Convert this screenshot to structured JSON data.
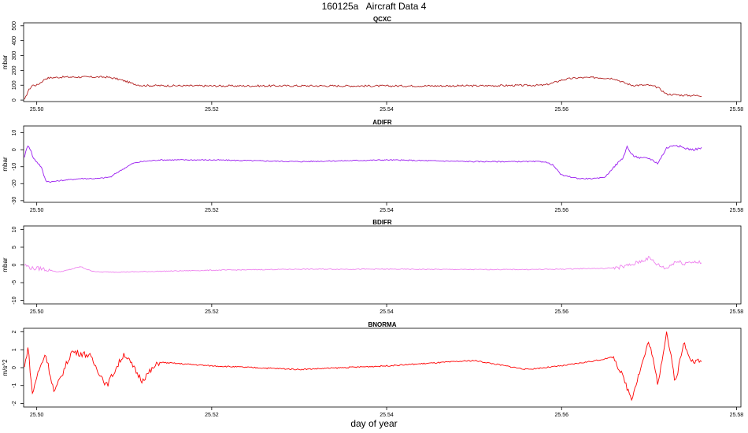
{
  "title": "160125a   Aircraft Data 4",
  "xlabel": "day of year",
  "chart_data": [
    {
      "type": "line",
      "title": "QCXC",
      "ylabel": "mbar",
      "color": "#b22222",
      "xlim": [
        25.4985,
        25.5805
      ],
      "ylim": [
        -10,
        520
      ],
      "xticks": [
        25.5,
        25.52,
        25.54,
        25.56,
        25.58
      ],
      "xtick_labels": [
        "25.50",
        "25.52",
        "25.54",
        "25.56",
        "25.58"
      ],
      "yticks": [
        0,
        100,
        200,
        300,
        400,
        500
      ],
      "ytick_labels": [
        "0",
        "100",
        "200",
        "300",
        "400",
        "500"
      ],
      "series": [
        {
          "x": [
            25.4986,
            25.499,
            25.4995,
            25.5,
            25.5005,
            25.501,
            25.5015,
            25.503,
            25.506,
            25.508,
            25.509,
            25.51,
            25.511,
            25.512,
            25.52,
            25.53,
            25.54,
            25.55,
            25.558,
            25.559,
            25.56,
            25.561,
            25.562,
            25.564,
            25.566,
            25.567,
            25.568,
            25.569,
            25.57,
            25.571,
            25.572,
            25.574,
            25.576
          ],
          "y": [
            0,
            60,
            100,
            100,
            120,
            145,
            150,
            155,
            155,
            155,
            145,
            130,
            110,
            98,
            95,
            96,
            95,
            96,
            100,
            115,
            135,
            145,
            150,
            152,
            145,
            120,
            100,
            100,
            100,
            85,
            40,
            32,
            30
          ]
        }
      ]
    },
    {
      "type": "line",
      "title": "ADIFR",
      "ylabel": "mbar",
      "color": "#9a1cf0",
      "xlim": [
        25.4985,
        25.5805
      ],
      "ylim": [
        -31,
        14
      ],
      "xticks": [
        25.5,
        25.52,
        25.54,
        25.56,
        25.58
      ],
      "xtick_labels": [
        "25.50",
        "25.52",
        "25.54",
        "25.56",
        "25.58"
      ],
      "yticks": [
        -30,
        -20,
        -10,
        0,
        10
      ],
      "ytick_labels": [
        "-30",
        "-20",
        "-10",
        "0",
        "10"
      ],
      "series": [
        {
          "x": [
            25.4986,
            25.499,
            25.4993,
            25.4996,
            25.5,
            25.5005,
            25.501,
            25.5015,
            25.503,
            25.505,
            25.507,
            25.5085,
            25.509,
            25.51,
            25.511,
            25.512,
            25.514,
            25.52,
            25.53,
            25.54,
            25.55,
            25.558,
            25.559,
            25.56,
            25.561,
            25.562,
            25.564,
            25.565,
            25.566,
            25.567,
            25.5675,
            25.568,
            25.569,
            25.57,
            25.571,
            25.572,
            25.573,
            25.574,
            25.575,
            25.576
          ],
          "y": [
            -4,
            3,
            0,
            -5,
            -7,
            -10,
            -18,
            -19,
            -18,
            -17,
            -17,
            -16,
            -14,
            -11,
            -8,
            -7,
            -6,
            -6,
            -7,
            -6,
            -7,
            -7,
            -9,
            -15,
            -16,
            -17,
            -17,
            -16,
            -10,
            -5,
            2,
            -3,
            -5,
            -5,
            -8,
            1,
            3,
            1,
            0,
            1
          ]
        }
      ]
    },
    {
      "type": "line",
      "title": "BDIFR",
      "ylabel": "mbar",
      "color": "#ee82ee",
      "xlim": [
        25.4985,
        25.5805
      ],
      "ylim": [
        -11,
        11
      ],
      "xticks": [
        25.5,
        25.52,
        25.54,
        25.56,
        25.58
      ],
      "xtick_labels": [
        "25.50",
        "25.52",
        "25.54",
        "25.56",
        "25.58"
      ],
      "yticks": [
        -10,
        -5,
        0,
        5,
        10
      ],
      "ytick_labels": [
        "-10",
        "-5",
        "0",
        "5",
        "10"
      ],
      "series": [
        {
          "x": [
            25.4986,
            25.4995,
            25.5005,
            25.5015,
            25.5025,
            25.5035,
            25.505,
            25.506,
            25.507,
            25.51,
            25.52,
            25.53,
            25.54,
            25.55,
            25.556,
            25.56,
            25.563,
            25.565,
            25.567,
            25.568,
            25.569,
            25.57,
            25.571,
            25.572,
            25.573,
            25.574,
            25.575,
            25.576
          ],
          "y": [
            0,
            -1,
            -1,
            -1.5,
            -2,
            -1.5,
            -0.5,
            -1.5,
            -2,
            -2,
            -1.5,
            -1.2,
            -1.2,
            -1.3,
            -1.3,
            -1.2,
            -1,
            -1,
            -0.5,
            0,
            1,
            2,
            0,
            -1,
            1,
            0.5,
            1,
            0.5
          ]
        }
      ]
    },
    {
      "type": "line",
      "title": "BNORMA",
      "ylabel": "m/s^2",
      "color": "#ff0000",
      "xlim": [
        25.4985,
        25.5805
      ],
      "ylim": [
        -2.2,
        2.2
      ],
      "xticks": [
        25.5,
        25.52,
        25.54,
        25.56,
        25.58
      ],
      "xtick_labels": [
        "25.50",
        "25.52",
        "25.54",
        "25.56",
        "25.58"
      ],
      "yticks": [
        -2,
        -1,
        0,
        1,
        2
      ],
      "ytick_labels": [
        "-2",
        "-1",
        "0",
        "1",
        "2"
      ],
      "series": [
        {
          "x": [
            25.4986,
            25.499,
            25.4995,
            25.5,
            25.501,
            25.502,
            25.504,
            25.506,
            25.508,
            25.51,
            25.512,
            25.514,
            25.52,
            25.53,
            25.54,
            25.55,
            25.556,
            25.56,
            25.564,
            25.566,
            25.568,
            25.57,
            25.571,
            25.572,
            25.573,
            25.574,
            25.575,
            25.576
          ],
          "y": [
            0,
            1.2,
            -1.5,
            -0.5,
            0.8,
            -1.4,
            0.9,
            0.7,
            -1.0,
            0.8,
            -0.7,
            0.3,
            0.1,
            -0.1,
            0.1,
            0.4,
            -0.1,
            0.1,
            0.4,
            0.6,
            -1.7,
            1.5,
            -0.9,
            2.0,
            -0.8,
            1.4,
            0.3,
            0.4
          ]
        }
      ]
    }
  ]
}
